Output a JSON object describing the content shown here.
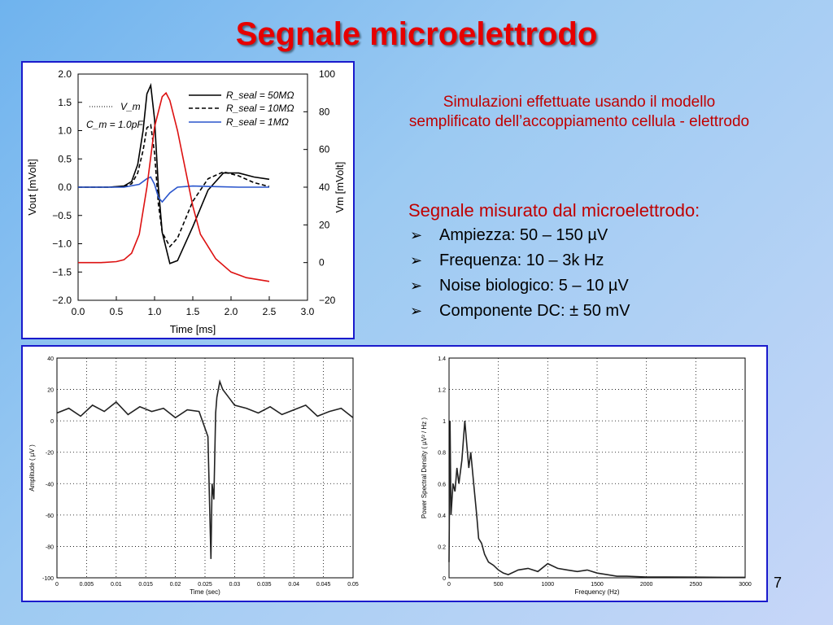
{
  "slide": {
    "title": "Segnale microelettrodo",
    "subtitle_line1": "Simulazioni effettuate usando il modello",
    "subtitle_line2": "semplificato dell’accoppiamento cellula - elettrodo",
    "measure_title": "Segnale misurato dal microelettrodo:",
    "bullets": [
      "Ampiezza: 50 – 150 µV",
      "Frequenza: 10 – 3k Hz",
      "Noise biologico: 5 – 10 µV",
      "Componente DC: ± 50 mV"
    ],
    "page_number": "7",
    "colors": {
      "title": "#e60000",
      "text_red": "#c00000",
      "frame": "#1a1acc"
    }
  },
  "chart_data": [
    {
      "type": "line",
      "xlabel": "Time  [ms]",
      "ylabel": "Vout  [mVolt]",
      "y2label": "Vm  [mVolt]",
      "xlim": [
        0.0,
        3.0
      ],
      "ylim": [
        -2.0,
        2.0
      ],
      "y2lim": [
        -20,
        100
      ],
      "xticks": [
        "0.0",
        "0.5",
        "1.0",
        "1.5",
        "2.0",
        "2.5",
        "3.0"
      ],
      "yticks": [
        "2.0",
        "1.5",
        "1.0",
        "0.5",
        "0.0",
        "−0.5",
        "−1.0",
        "−1.5",
        "−2.0"
      ],
      "y2ticks": [
        "100",
        "80",
        "60",
        "40",
        "20",
        "0",
        "−20"
      ],
      "annotations": [
        "V_m",
        "C_m = 1.0pF"
      ],
      "legend": [
        "R_seal = 50MΩ",
        "R_seal = 10MΩ",
        "R_seal =   1MΩ"
      ],
      "series": [
        {
          "name": "R_seal = 50MΩ",
          "color": "#000000",
          "dash": "solid",
          "x": [
            0,
            0.2,
            0.4,
            0.6,
            0.7,
            0.78,
            0.85,
            0.9,
            0.95,
            1.0,
            1.05,
            1.1,
            1.2,
            1.3,
            1.5,
            1.7,
            1.9,
            2.1,
            2.3,
            2.5
          ],
          "y": [
            0,
            0,
            0,
            0.02,
            0.1,
            0.4,
            1.0,
            1.65,
            1.8,
            1.2,
            0,
            -0.8,
            -1.35,
            -1.3,
            -0.7,
            -0.05,
            0.25,
            0.25,
            0.18,
            0.14
          ]
        },
        {
          "name": "R_seal = 10MΩ",
          "color": "#000000",
          "dash": "dashed",
          "x": [
            0,
            0.2,
            0.4,
            0.6,
            0.7,
            0.78,
            0.85,
            0.9,
            0.95,
            1.0,
            1.05,
            1.1,
            1.2,
            1.3,
            1.5,
            1.7,
            1.9,
            2.1,
            2.3,
            2.5
          ],
          "y": [
            0,
            0,
            0,
            0.01,
            0.06,
            0.25,
            0.65,
            1.05,
            1.1,
            0.6,
            -0.3,
            -0.8,
            -1.05,
            -0.9,
            -0.25,
            0.15,
            0.27,
            0.2,
            0.08,
            0.01
          ]
        },
        {
          "name": "R_seal =   1MΩ",
          "color": "#2a55cc",
          "dash": "solid",
          "x": [
            0,
            0.3,
            0.6,
            0.8,
            0.9,
            0.95,
            1.0,
            1.05,
            1.1,
            1.2,
            1.3,
            1.5,
            1.8,
            2.1,
            2.5
          ],
          "y": [
            0,
            0,
            0,
            0.05,
            0.15,
            0.18,
            0.05,
            -0.18,
            -0.26,
            -0.1,
            0,
            0.02,
            0.01,
            0.0,
            0.0
          ]
        },
        {
          "name": "V_m",
          "color": "#dd1111",
          "dash": "solid",
          "axis": "y2",
          "x": [
            0,
            0.3,
            0.5,
            0.6,
            0.7,
            0.8,
            0.9,
            1.0,
            1.1,
            1.15,
            1.2,
            1.3,
            1.4,
            1.5,
            1.6,
            1.8,
            2.0,
            2.2,
            2.5
          ],
          "y": [
            0,
            0,
            0.5,
            1.5,
            5,
            15,
            40,
            72,
            88,
            90,
            86,
            70,
            50,
            30,
            15,
            2,
            -5,
            -8,
            -10
          ]
        }
      ]
    },
    {
      "type": "line",
      "xlabel": "Time (sec)",
      "ylabel": "Amplitude  ( µV )",
      "xlim": [
        0,
        0.05
      ],
      "ylim": [
        -100,
        40
      ],
      "xticks": [
        "0",
        "0.005",
        "0.01",
        "0.015",
        "0.02",
        "0.025",
        "0.03",
        "0.035",
        "0.04",
        "0.045",
        "0.05"
      ],
      "yticks": [
        "40",
        "20",
        "0",
        "-20",
        "-40",
        "-60",
        "-80",
        "-100"
      ],
      "grid": true,
      "series": [
        {
          "color": "#222222",
          "x": [
            0,
            0.002,
            0.004,
            0.006,
            0.008,
            0.01,
            0.012,
            0.014,
            0.016,
            0.018,
            0.02,
            0.022,
            0.024,
            0.0255,
            0.026,
            0.0262,
            0.0265,
            0.0268,
            0.027,
            0.0275,
            0.028,
            0.029,
            0.03,
            0.032,
            0.034,
            0.036,
            0.038,
            0.04,
            0.042,
            0.044,
            0.046,
            0.048,
            0.05
          ],
          "y": [
            5,
            8,
            3,
            10,
            6,
            12,
            4,
            9,
            6,
            8,
            2,
            7,
            6,
            -10,
            -88,
            -40,
            -50,
            5,
            15,
            25,
            20,
            15,
            10,
            8,
            5,
            9,
            4,
            7,
            10,
            3,
            6,
            8,
            2
          ]
        }
      ]
    },
    {
      "type": "line",
      "xlabel": "Frequency (Hz)",
      "ylabel": "Power Spectral Density ( µV² / Hz )",
      "xlim": [
        0,
        3000
      ],
      "ylim": [
        0,
        1.4
      ],
      "xticks": [
        "0",
        "500",
        "1000",
        "1500",
        "2000",
        "2500",
        "3000"
      ],
      "yticks": [
        "1.4",
        "1.2",
        "1",
        "0.8",
        "0.6",
        "0.4",
        "0.2",
        "0"
      ],
      "grid": true,
      "series": [
        {
          "color": "#222222",
          "x": [
            0,
            10,
            20,
            40,
            60,
            80,
            100,
            130,
            160,
            180,
            200,
            220,
            250,
            280,
            300,
            330,
            360,
            400,
            450,
            500,
            550,
            600,
            700,
            800,
            900,
            1000,
            1100,
            1200,
            1300,
            1400,
            1500,
            1600,
            1700,
            1800,
            2000,
            2200,
            2500,
            2800,
            3000
          ],
          "y": [
            0.1,
            1.0,
            0.4,
            0.6,
            0.55,
            0.7,
            0.6,
            0.75,
            1.0,
            0.85,
            0.7,
            0.8,
            0.6,
            0.4,
            0.25,
            0.22,
            0.15,
            0.1,
            0.08,
            0.05,
            0.03,
            0.02,
            0.05,
            0.06,
            0.04,
            0.09,
            0.06,
            0.05,
            0.04,
            0.05,
            0.03,
            0.02,
            0.01,
            0.01,
            0.005,
            0.005,
            0.004,
            0.003,
            0.003
          ]
        }
      ]
    }
  ]
}
